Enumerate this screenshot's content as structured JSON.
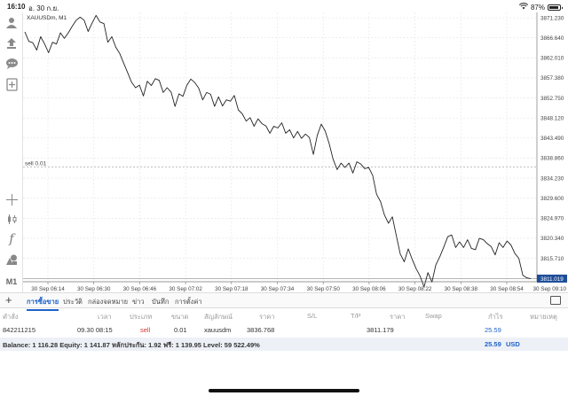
{
  "status_bar": {
    "time": "16:10",
    "date": "อ. 30 ก.ย.",
    "battery": "87%"
  },
  "chart": {
    "symbol_label": "XAUUSDm, M1",
    "sell_line_label": "sell 0.01",
    "current_price_tag": "3811.019",
    "colors": {
      "line": "#222222",
      "grid": "#e4e4e4",
      "price_tag_bg": "#1f4e99",
      "price_tag_text": "#ffffff"
    }
  },
  "chart_data": {
    "type": "line",
    "title": "XAUUSDm, M1",
    "xlabel": "",
    "ylabel": "",
    "y_ticks": [
      "3871.230",
      "3866.640",
      "3862.010",
      "3857.380",
      "3852.750",
      "3848.120",
      "3843.490",
      "3838.860",
      "3834.230",
      "3829.600",
      "3824.970",
      "3820.340",
      "3815.710"
    ],
    "x_ticks": [
      "30 Sep 06:14",
      "30 Sep 06:30",
      "30 Sep 06:46",
      "30 Sep 07:02",
      "30 Sep 07:18",
      "30 Sep 07:34",
      "30 Sep 07:50",
      "30 Sep 08:06",
      "30 Sep 08:22",
      "30 Sep 08:38",
      "30 Sep 08:54",
      "30 Sep 09:10"
    ],
    "ylim": [
      3810.3,
      3872.5
    ],
    "sell_level": 3836.768,
    "current_price": 3811.019,
    "grid": true,
    "series": [
      {
        "values": [
          3868.0,
          3865.8,
          3865.5,
          3863.8,
          3866.9,
          3865.2,
          3863.2,
          3865.6,
          3865.2,
          3867.8,
          3866.5,
          3867.8,
          3869.3,
          3870.7,
          3871.4,
          3870.7,
          3868.1,
          3870.0,
          3871.8,
          3870.3,
          3869.9,
          3865.6,
          3866.9,
          3864.5,
          3863.0,
          3860.8,
          3858.6,
          3856.4,
          3855.1,
          3855.7,
          3853.2,
          3856.6,
          3855.6,
          3857.2,
          3856.8,
          3854.0,
          3855.1,
          3854.1,
          3850.8,
          3853.7,
          3853.1,
          3855.7,
          3857.1,
          3856.3,
          3855.0,
          3852.3,
          3854.0,
          3853.6,
          3850.8,
          3853.0,
          3850.9,
          3852.3,
          3852.0,
          3853.3,
          3850.0,
          3849.1,
          3847.4,
          3848.2,
          3846.2,
          3847.9,
          3846.8,
          3846.3,
          3844.6,
          3846.2,
          3845.8,
          3847.0,
          3844.6,
          3845.4,
          3843.5,
          3845.0,
          3843.4,
          3844.4,
          3843.6,
          3839.7,
          3844.1,
          3846.7,
          3845.1,
          3842.2,
          3838.6,
          3836.2,
          3837.7,
          3836.7,
          3837.7,
          3835.4,
          3838.0,
          3837.5,
          3836.4,
          3836.7,
          3834.9,
          3830.5,
          3828.8,
          3825.7,
          3823.8,
          3825.3,
          3820.9,
          3816.7,
          3814.9,
          3817.9,
          3815.5,
          3813.3,
          3811.6,
          3809.1,
          3812.4,
          3810.2,
          3814.2,
          3816.1,
          3818.3,
          3820.7,
          3821.1,
          3818.2,
          3819.5,
          3818.2,
          3820.0,
          3818.0,
          3817.7,
          3820.3,
          3820.0,
          3819.1,
          3818.4,
          3816.5,
          3819.3,
          3818.2,
          3819.7,
          3818.8,
          3816.8,
          3815.7,
          3811.8,
          3811.2,
          3811.0
        ]
      }
    ]
  },
  "left_toolbar": {
    "icons": [
      "person-icon",
      "deposit-icon",
      "chat-icon",
      "add-document-icon",
      "crosshair-icon",
      "candlestick-icon",
      "function-icon",
      "objects-icon"
    ],
    "timeframe": "M1"
  },
  "tabs": {
    "items": [
      "การซื้อขาย",
      "ประวัติ",
      "กล่องจดหมาย",
      "ข่าว",
      "บันทึก",
      "การตั้งค่า"
    ]
  },
  "table": {
    "headers": [
      "คำสั่ง",
      "เวลา",
      "ประเภท",
      "ขนาด",
      "สัญลักษณ์",
      "ราคา",
      "S/L",
      "T/P",
      "ราคา",
      "Swap",
      "กำไร",
      "หมายเหตุ"
    ],
    "row": {
      "order": "842211215",
      "time": "09.30 08:15",
      "type": "sell",
      "volume": "0.01",
      "symbol": "xauusdm",
      "open_price": "3836.768",
      "sl": "",
      "tp": "",
      "price": "3811.179",
      "swap": "",
      "profit": "25.59",
      "comment": ""
    }
  },
  "summary": {
    "text": "Balance: 1 116.28 Equity: 1 141.87 หลักประกัน: 1.92 ฟรี: 1 139.95 Level: 59 522.49%",
    "amount": "25.59",
    "currency": "USD"
  }
}
